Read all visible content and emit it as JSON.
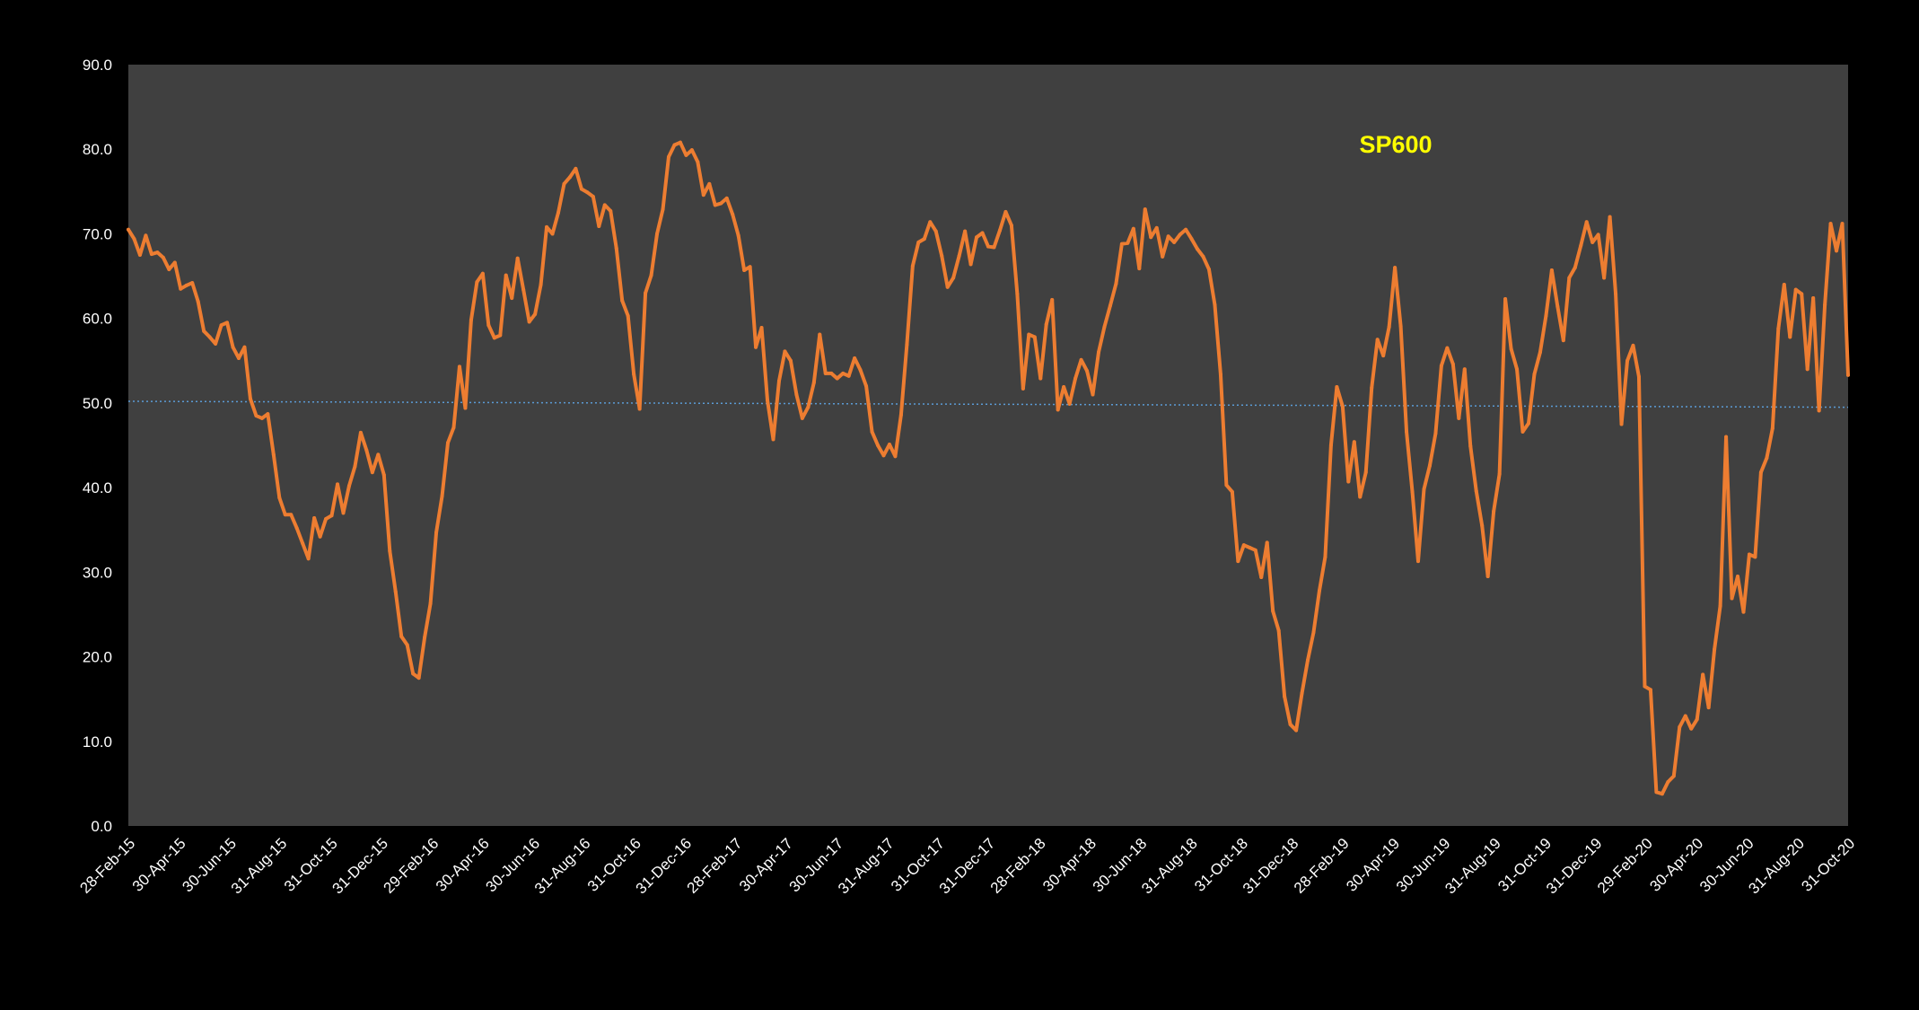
{
  "chart_data": {
    "type": "line",
    "title": "SP600",
    "xlabel": "",
    "ylabel": "",
    "ylim": [
      0,
      90
    ],
    "y_ticks": [
      "0.0",
      "10.0",
      "20.0",
      "30.0",
      "40.0",
      "50.0",
      "60.0",
      "70.0",
      "80.0",
      "90.0"
    ],
    "x_ticks": [
      "28-Feb-15",
      "30-Apr-15",
      "30-Jun-15",
      "31-Aug-15",
      "31-Oct-15",
      "31-Dec-15",
      "29-Feb-16",
      "30-Apr-16",
      "30-Jun-16",
      "31-Aug-16",
      "31-Oct-16",
      "31-Dec-16",
      "28-Feb-17",
      "30-Apr-17",
      "30-Jun-17",
      "31-Aug-17",
      "31-Oct-17",
      "31-Dec-17",
      "28-Feb-18",
      "30-Apr-18",
      "30-Jun-18",
      "31-Aug-18",
      "31-Oct-18",
      "31-Dec-18",
      "28-Feb-19",
      "30-Apr-19",
      "30-Jun-19",
      "31-Aug-19",
      "31-Oct-19",
      "31-Dec-19",
      "29-Feb-20",
      "30-Apr-20",
      "30-Jun-20",
      "31-Aug-20",
      "31-Oct-20"
    ],
    "grid": false,
    "legend": "none",
    "colors": {
      "background": "#000000",
      "plot_area": "#404040",
      "line": "#ED7D31",
      "reference": "#5B9BD5",
      "title": "#FFFF00",
      "text": "#FFFFFF"
    },
    "reference_line": {
      "start": 50.2,
      "end": 49.5,
      "style": "dotted"
    },
    "series": [
      {
        "values": [
          70.5,
          69.4,
          67.5,
          69.8,
          67.6,
          67.8,
          67.2,
          65.8,
          66.6,
          63.5,
          63.9,
          64.2,
          62.0,
          58.5,
          57.8,
          57.0,
          59.2,
          59.5,
          56.6,
          55.3,
          56.6,
          50.5,
          48.5,
          48.2,
          48.7,
          43.9,
          38.8,
          36.8,
          36.8,
          35.2,
          33.4,
          31.6,
          36.4,
          34.2,
          36.3,
          36.7,
          40.4,
          37.0,
          40.2,
          42.5,
          46.5,
          44.4,
          41.8,
          43.9,
          41.5,
          32.5,
          27.7,
          22.4,
          21.4,
          18.0,
          17.5,
          22.3,
          26.3,
          34.7,
          39.0,
          45.3,
          47.1,
          54.3,
          49.4,
          59.8,
          64.3,
          65.3,
          59.2,
          57.7,
          58.0,
          65.1,
          62.4,
          67.1,
          63.4,
          59.6,
          60.5,
          64.0,
          70.8,
          70.0,
          72.5,
          75.9,
          76.7,
          77.7,
          75.3,
          74.9,
          74.4,
          70.9,
          73.4,
          72.7,
          68.3,
          62.1,
          60.3,
          53.4,
          49.3,
          63.0,
          65.1,
          70.0,
          72.9,
          79.1,
          80.5,
          80.8,
          79.3,
          79.9,
          78.5,
          74.6,
          75.9,
          73.4,
          73.6,
          74.2,
          72.3,
          69.8,
          65.7,
          66.1,
          56.6,
          58.9,
          50.3,
          45.7,
          52.6,
          56.1,
          55.0,
          51.0,
          48.2,
          49.5,
          52.4,
          58.1,
          53.5,
          53.5,
          52.9,
          53.5,
          53.2,
          55.3,
          53.9,
          52.0,
          46.6,
          45.0,
          43.8,
          45.1,
          43.7,
          48.6,
          56.9,
          66.2,
          69.0,
          69.4,
          71.4,
          70.3,
          67.4,
          63.7,
          64.8,
          67.4,
          70.3,
          66.4,
          69.6,
          70.1,
          68.5,
          68.4,
          70.4,
          72.6,
          71.0,
          62.9,
          51.7,
          58.1,
          57.8,
          52.9,
          59.3,
          62.2,
          49.2,
          51.9,
          49.9,
          52.9,
          55.1,
          53.8,
          51.0,
          56.0,
          59.0,
          61.5,
          64.1,
          68.8,
          68.9,
          70.6,
          65.9,
          72.9,
          69.6,
          70.7,
          67.3,
          69.7,
          69.0,
          69.9,
          70.5,
          69.4,
          68.2,
          67.3,
          65.8,
          61.6,
          53.4,
          40.3,
          39.5,
          31.3,
          33.2,
          32.9,
          32.6,
          29.4,
          33.5,
          25.4,
          23.1,
          15.3,
          12.0,
          11.3,
          15.7,
          19.6,
          22.9,
          27.8,
          31.8,
          45.0,
          51.9,
          49.6,
          40.7,
          45.4,
          38.9,
          41.8,
          51.8,
          57.5,
          55.6,
          59.0,
          66.0,
          59.1,
          46.6,
          39.5,
          31.3,
          39.8,
          42.6,
          46.4,
          54.4,
          56.5,
          54.6,
          48.2,
          54.0,
          44.9,
          39.6,
          35.5,
          29.5,
          37.2,
          41.6,
          62.3,
          56.4,
          54.0,
          46.6,
          47.6,
          53.4,
          56.0,
          60.3,
          65.7,
          61.4,
          57.4,
          64.8,
          66.0,
          68.6,
          71.4,
          69.0,
          69.9,
          64.8,
          72.0,
          62.9,
          47.5,
          55.0,
          56.8,
          53.1,
          16.5,
          16.1,
          4.0,
          3.8,
          5.2,
          5.9,
          11.7,
          13.0,
          11.5,
          12.6,
          17.9,
          14.0,
          20.9,
          26.0,
          46.0,
          26.9,
          29.5,
          25.3,
          32.1,
          31.8,
          41.8,
          43.5,
          47.0,
          58.8,
          64.0,
          57.8,
          63.4,
          62.9,
          54.0,
          62.4,
          49.1,
          61.6,
          71.2,
          68.0,
          71.2,
          53.3
        ]
      }
    ]
  }
}
